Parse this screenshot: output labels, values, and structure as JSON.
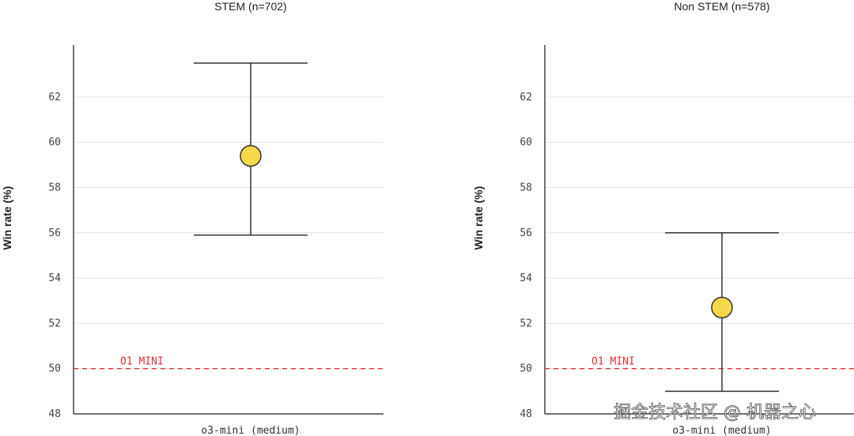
{
  "chart_data": [
    {
      "type": "scatter",
      "title": "STEM (n=702)",
      "ylabel": "Win rate (%)",
      "xlabel": "",
      "categories": [
        "o3-mini (medium)"
      ],
      "series": [
        {
          "name": "o3-mini (medium)",
          "value": 59.4,
          "ci_low": 55.9,
          "ci_high": 63.5
        }
      ],
      "yticks": [
        48,
        50,
        52,
        54,
        56,
        58,
        60,
        62
      ],
      "ylim": [
        48,
        64.3
      ],
      "reference_line": {
        "label": "O1 MINI",
        "value": 50
      },
      "grid": true
    },
    {
      "type": "scatter",
      "title": "Non STEM (n=578)",
      "ylabel": "Win rate (%)",
      "xlabel": "",
      "categories": [
        "o3-mini (medium)"
      ],
      "series": [
        {
          "name": "o3-mini (medium)",
          "value": 52.7,
          "ci_low": 49.0,
          "ci_high": 56.0
        }
      ],
      "yticks": [
        48,
        50,
        52,
        54,
        56,
        58,
        60,
        62
      ],
      "ylim": [
        48,
        64.3
      ],
      "reference_line": {
        "label": "O1 MINI",
        "value": 50
      },
      "grid": true
    }
  ],
  "watermark": "掘金技术社区 @ 机器之心",
  "colors": {
    "point": "#f5d94a",
    "reference": "#e0323c",
    "grid": "#e4e4e4",
    "axis": "#444444"
  }
}
